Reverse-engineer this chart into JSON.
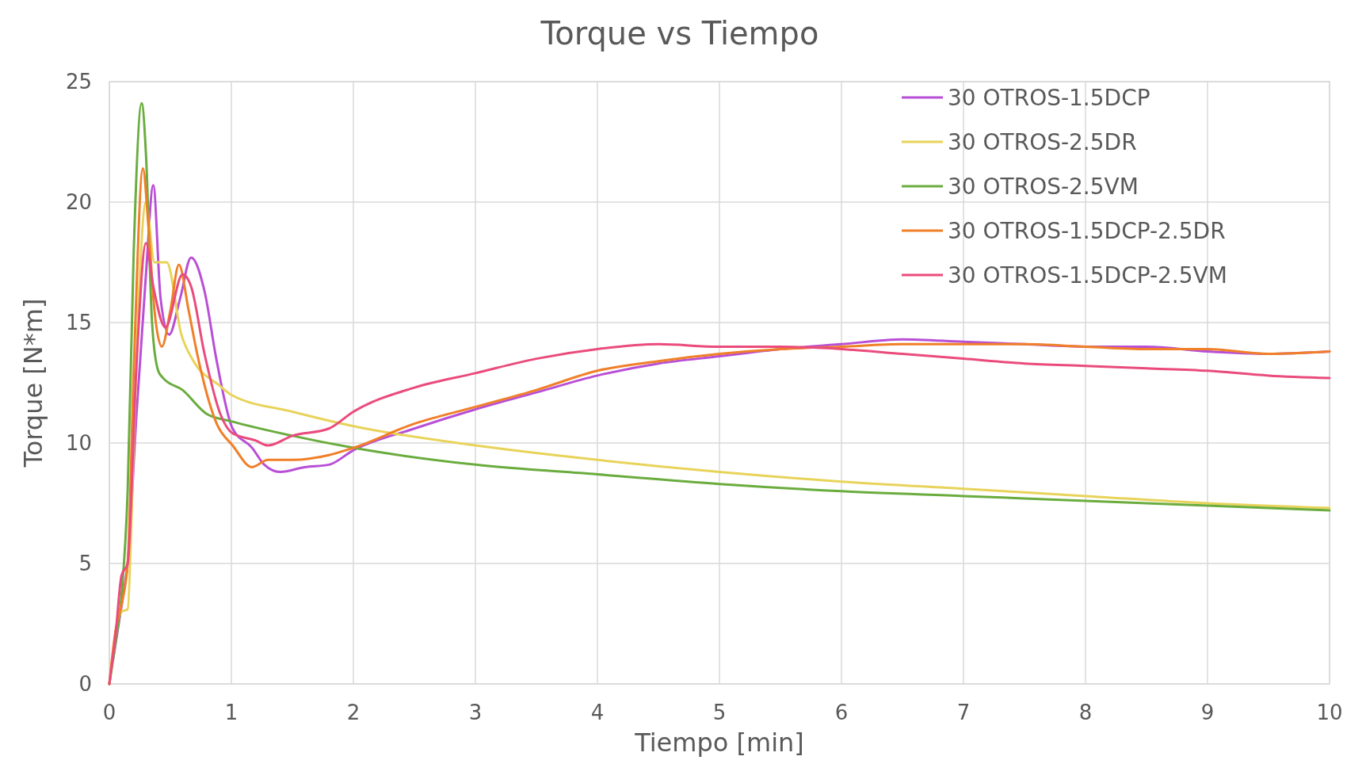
{
  "chart_data": {
    "type": "line",
    "title": "Torque vs Tiempo",
    "xlabel": "Tiempo [min]",
    "ylabel": "Torque [N*m]",
    "xlim": [
      0,
      10
    ],
    "xticks": [
      0,
      1,
      2,
      3,
      4,
      5,
      6,
      7,
      8,
      9,
      10
    ],
    "ylim": [
      0,
      25
    ],
    "yticks": [
      0,
      5,
      10,
      15,
      20,
      25
    ],
    "grid": true,
    "legend": "top right",
    "line_style": "solid",
    "series": [
      {
        "name": "30 OTROS-1.5DCP",
        "color": "#b84fd6",
        "x": [
          0.03,
          0.08,
          0.12,
          0.15,
          0.22,
          0.3,
          0.36,
          0.42,
          0.49,
          0.58,
          0.67,
          0.78,
          0.88,
          1.01,
          1.17,
          1.27,
          1.4,
          1.6,
          1.8,
          2,
          2.5,
          3,
          3.5,
          4,
          4.5,
          5,
          5.5,
          6,
          6.5,
          7,
          7.5,
          8,
          8.5,
          9,
          9.5,
          10
        ],
        "values": [
          1,
          2.6,
          3.9,
          5,
          11,
          17,
          20.7,
          16,
          14.5,
          16,
          17.7,
          16.3,
          13.4,
          10.6,
          9.8,
          9.1,
          8.8,
          9,
          9.1,
          9.7,
          10.6,
          11.4,
          12.1,
          12.8,
          13.3,
          13.6,
          13.9,
          14.1,
          14.3,
          14.2,
          14.1,
          14,
          14,
          13.8,
          13.7,
          13.8
        ]
      },
      {
        "name": "30 OTROS-2.5DR",
        "color": "#e8d35a",
        "x": [
          0,
          0.05,
          0.1,
          0.15,
          0.2,
          0.25,
          0.3,
          0.37,
          0.47,
          0.59,
          0.69,
          0.9,
          1,
          1.5,
          2,
          3,
          4,
          5,
          6,
          7,
          8,
          9,
          10
        ],
        "values": [
          0,
          2,
          3,
          3.1,
          10,
          17,
          20,
          17.5,
          17.5,
          14.5,
          13.4,
          12.4,
          12,
          11.3,
          10.7,
          9.9,
          9.3,
          8.8,
          8.4,
          8.1,
          7.8,
          7.5,
          7.3
        ]
      },
      {
        "name": "30 OTROS-2.5VM",
        "color": "#6aac3e",
        "x": [
          0,
          0.05,
          0.1,
          0.15,
          0.2,
          0.265,
          0.3,
          0.35,
          0.4,
          0.44,
          0.6,
          0.8,
          1,
          1.5,
          2,
          3,
          4,
          5,
          6,
          7,
          8,
          9,
          10
        ],
        "values": [
          0,
          1.7,
          3.7,
          8,
          18,
          24.1,
          22,
          15,
          13,
          12.7,
          12.2,
          11.2,
          10.9,
          10.3,
          9.8,
          9.1,
          8.7,
          8.3,
          8,
          7.8,
          7.6,
          7.4,
          7.2
        ]
      },
      {
        "name": "30 OTROS-1.5DCP-2.5DR",
        "color": "#f07f28",
        "x": [
          0,
          0.05,
          0.1,
          0.15,
          0.2,
          0.275,
          0.32,
          0.37,
          0.43,
          0.5,
          0.57,
          0.65,
          0.72,
          0.88,
          1.01,
          1.17,
          1.3,
          1.5,
          1.8,
          2,
          2.5,
          3,
          3.5,
          4,
          4.5,
          5,
          5.5,
          6,
          6.5,
          7,
          7.5,
          8,
          8.5,
          9,
          9.5,
          10
        ],
        "values": [
          0,
          2.2,
          3.3,
          5,
          13,
          21.4,
          19,
          15.5,
          14,
          15.5,
          17.4,
          15.5,
          13.7,
          10.8,
          9.9,
          9,
          9.3,
          9.3,
          9.5,
          9.8,
          10.8,
          11.5,
          12.2,
          13,
          13.4,
          13.7,
          13.9,
          14,
          14.1,
          14.1,
          14.1,
          14,
          13.9,
          13.9,
          13.7,
          13.8
        ]
      },
      {
        "name": "30 OTROS-1.5DCP-2.5VM",
        "color": "#ea4b7c",
        "x": [
          0,
          0.05,
          0.1,
          0.15,
          0.22,
          0.3,
          0.36,
          0.46,
          0.6,
          0.67,
          0.78,
          0.91,
          1.01,
          1.2,
          1.3,
          1.5,
          1.8,
          2,
          2.5,
          3,
          3.5,
          4,
          4.5,
          5,
          5.5,
          6,
          6.5,
          7,
          7.5,
          8,
          8.5,
          9,
          9.5,
          10
        ],
        "values": [
          0,
          2,
          4.5,
          5,
          13,
          18.3,
          16.5,
          14.8,
          17,
          16.5,
          13.7,
          11.2,
          10.4,
          10.1,
          9.9,
          10.3,
          10.6,
          11.3,
          12.3,
          12.9,
          13.5,
          13.9,
          14.1,
          14,
          14,
          13.9,
          13.7,
          13.5,
          13.3,
          13.2,
          13.1,
          13,
          12.8,
          12.7
        ]
      }
    ]
  }
}
